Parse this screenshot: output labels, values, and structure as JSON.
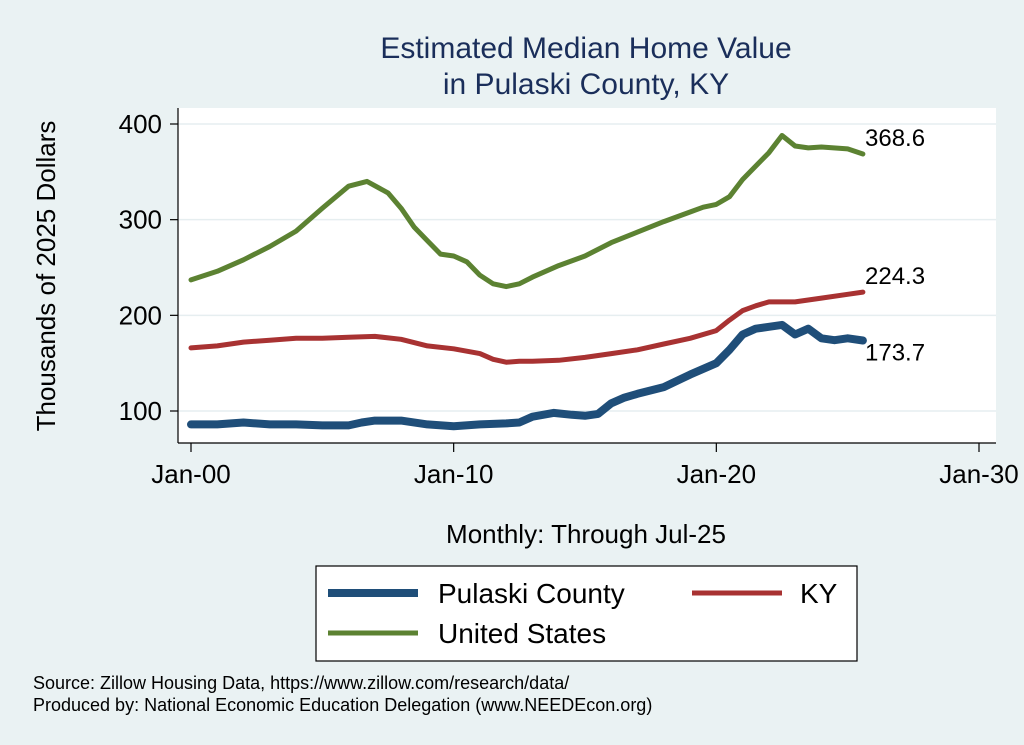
{
  "chart_data": {
    "type": "line",
    "title": "Estimated Median Home Value",
    "subtitle": "in Pulaski County, KY",
    "xlabel": "Monthly: Through Jul-25",
    "ylabel": "Thousands of 2025 Dollars",
    "x_ticks": [
      "Jan-00",
      "Jan-10",
      "Jan-20",
      "Jan-30"
    ],
    "xlim": [
      2000,
      2030
    ],
    "y_ticks": [
      100,
      200,
      300,
      400
    ],
    "ylim": [
      75,
      415
    ],
    "grid": true,
    "legend_position": "bottom",
    "series": [
      {
        "name": "Pulaski County",
        "color": "#1f4e79",
        "end_label": "173.7",
        "points": [
          [
            2000.0,
            86
          ],
          [
            2001.0,
            86
          ],
          [
            2002.0,
            88
          ],
          [
            2003.0,
            86
          ],
          [
            2004.0,
            86
          ],
          [
            2005.0,
            85
          ],
          [
            2006.0,
            85
          ],
          [
            2006.5,
            88
          ],
          [
            2007.0,
            90
          ],
          [
            2008.0,
            90
          ],
          [
            2009.0,
            86
          ],
          [
            2010.0,
            84
          ],
          [
            2011.0,
            86
          ],
          [
            2012.0,
            87
          ],
          [
            2012.5,
            88
          ],
          [
            2013.0,
            94
          ],
          [
            2013.8,
            98
          ],
          [
            2014.5,
            96
          ],
          [
            2015.0,
            95
          ],
          [
            2015.5,
            97
          ],
          [
            2016.0,
            108
          ],
          [
            2016.5,
            114
          ],
          [
            2017.0,
            118
          ],
          [
            2018.0,
            125
          ],
          [
            2019.0,
            138
          ],
          [
            2020.0,
            150
          ],
          [
            2020.5,
            164
          ],
          [
            2021.0,
            180
          ],
          [
            2021.5,
            186
          ],
          [
            2022.0,
            188
          ],
          [
            2022.5,
            190
          ],
          [
            2023.0,
            180
          ],
          [
            2023.5,
            186
          ],
          [
            2024.0,
            176
          ],
          [
            2024.5,
            174
          ],
          [
            2025.0,
            176
          ],
          [
            2025.58,
            173.7
          ]
        ]
      },
      {
        "name": "KY",
        "color": "#a83232",
        "end_label": "224.3",
        "points": [
          [
            2000.0,
            166
          ],
          [
            2001.0,
            168
          ],
          [
            2002.0,
            172
          ],
          [
            2003.0,
            174
          ],
          [
            2004.0,
            176
          ],
          [
            2005.0,
            176
          ],
          [
            2006.0,
            177
          ],
          [
            2007.0,
            178
          ],
          [
            2008.0,
            175
          ],
          [
            2009.0,
            168
          ],
          [
            2010.0,
            165
          ],
          [
            2011.0,
            160
          ],
          [
            2011.5,
            154
          ],
          [
            2012.0,
            151
          ],
          [
            2012.5,
            152
          ],
          [
            2013.0,
            152
          ],
          [
            2014.0,
            153
          ],
          [
            2015.0,
            156
          ],
          [
            2016.0,
            160
          ],
          [
            2017.0,
            164
          ],
          [
            2018.0,
            170
          ],
          [
            2019.0,
            176
          ],
          [
            2020.0,
            184
          ],
          [
            2020.5,
            195
          ],
          [
            2021.0,
            205
          ],
          [
            2021.5,
            210
          ],
          [
            2022.0,
            214
          ],
          [
            2023.0,
            214
          ],
          [
            2024.0,
            218
          ],
          [
            2025.0,
            222
          ],
          [
            2025.58,
            224.3
          ]
        ]
      },
      {
        "name": "United States",
        "color": "#5c8232",
        "end_label": "368.6",
        "points": [
          [
            2000.0,
            237
          ],
          [
            2001.0,
            246
          ],
          [
            2002.0,
            258
          ],
          [
            2003.0,
            272
          ],
          [
            2004.0,
            288
          ],
          [
            2005.0,
            312
          ],
          [
            2006.0,
            335
          ],
          [
            2006.7,
            340
          ],
          [
            2007.5,
            328
          ],
          [
            2008.0,
            312
          ],
          [
            2008.5,
            292
          ],
          [
            2009.0,
            278
          ],
          [
            2009.5,
            264
          ],
          [
            2010.0,
            262
          ],
          [
            2010.5,
            256
          ],
          [
            2011.0,
            242
          ],
          [
            2011.5,
            233
          ],
          [
            2012.0,
            230
          ],
          [
            2012.5,
            233
          ],
          [
            2013.0,
            240
          ],
          [
            2014.0,
            252
          ],
          [
            2015.0,
            262
          ],
          [
            2016.0,
            276
          ],
          [
            2017.0,
            287
          ],
          [
            2018.0,
            298
          ],
          [
            2019.0,
            308
          ],
          [
            2019.5,
            313
          ],
          [
            2020.0,
            316
          ],
          [
            2020.5,
            324
          ],
          [
            2021.0,
            342
          ],
          [
            2021.5,
            356
          ],
          [
            2022.0,
            370
          ],
          [
            2022.5,
            388
          ],
          [
            2023.0,
            377
          ],
          [
            2023.5,
            375
          ],
          [
            2024.0,
            376
          ],
          [
            2025.0,
            374
          ],
          [
            2025.58,
            368.6
          ]
        ]
      }
    ]
  },
  "notes": {
    "source": "Source: Zillow Housing Data, https://www.zillow.com/research/data/",
    "producer": "Produced by: National Economic Education Delegation (www.NEEDEcon.org)"
  }
}
